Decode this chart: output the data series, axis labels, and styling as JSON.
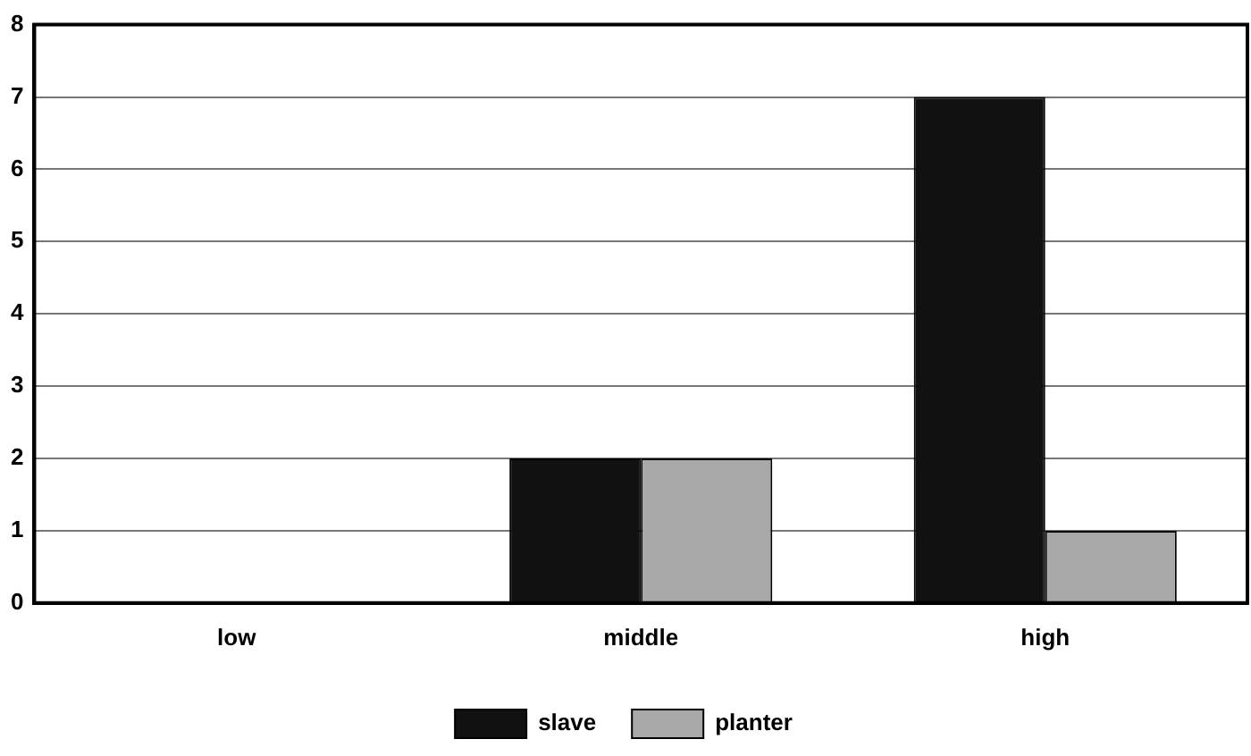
{
  "chart_data": {
    "type": "bar",
    "categories": [
      "low",
      "middle",
      "high"
    ],
    "series": [
      {
        "name": "slave",
        "color": "#111111",
        "values": [
          0,
          2,
          7
        ]
      },
      {
        "name": "planter",
        "color": "#a8a8a8",
        "values": [
          0,
          2,
          1
        ]
      }
    ],
    "ylim": [
      0,
      8
    ],
    "yticks": [
      0,
      1,
      2,
      3,
      4,
      5,
      6,
      7,
      8
    ],
    "grid": "y",
    "legend": "bottom"
  }
}
